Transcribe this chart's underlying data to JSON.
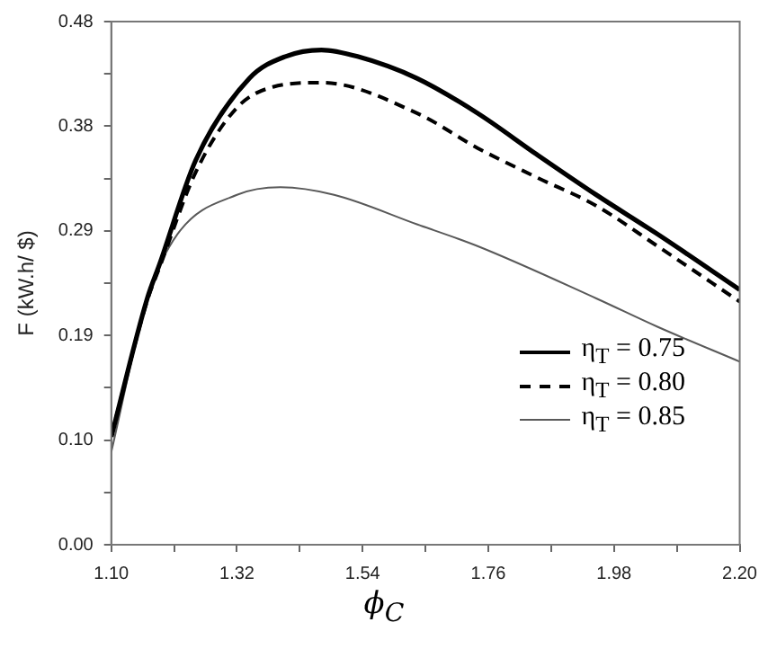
{
  "chart_data": {
    "type": "line",
    "xlabel": "ϕ$_{C}$",
    "ylabel": "F (kW.h/ $)",
    "xlim": [
      1.1,
      2.2
    ],
    "ylim": [
      0,
      0.48
    ],
    "xticks": [
      {
        "value": 1.1,
        "label": "1.10"
      },
      {
        "value": 1.21,
        "label": null
      },
      {
        "value": 1.32,
        "label": "1.32"
      },
      {
        "value": 1.43,
        "label": null
      },
      {
        "value": 1.54,
        "label": "1.54"
      },
      {
        "value": 1.65,
        "label": null
      },
      {
        "value": 1.76,
        "label": "1.76"
      },
      {
        "value": 1.87,
        "label": null
      },
      {
        "value": 1.98,
        "label": "1.98"
      },
      {
        "value": 2.09,
        "label": null
      },
      {
        "value": 2.2,
        "label": "2.20"
      }
    ],
    "yticks": [
      {
        "value": 0,
        "label": "0.00"
      },
      {
        "value": 0.048,
        "label": null
      },
      {
        "value": 0.096,
        "label": "0.10"
      },
      {
        "value": 0.144,
        "label": null
      },
      {
        "value": 0.192,
        "label": "0.19"
      },
      {
        "value": 0.24,
        "label": null
      },
      {
        "value": 0.288,
        "label": "0.29"
      },
      {
        "value": 0.336,
        "label": null
      },
      {
        "value": 0.384,
        "label": "0.38"
      },
      {
        "value": 0.432,
        "label": null
      },
      {
        "value": 0.48,
        "label": "0.48"
      }
    ],
    "grid": false,
    "legend": "bottom right",
    "marker": "none",
    "series": [
      {
        "name": "η$_{T}$ = 0.75",
        "color": "#000000",
        "line_style": "solid",
        "x": [
          1.1,
          1.163,
          1.185,
          1.248,
          1.342,
          1.405,
          1.468,
          1.531,
          1.635,
          1.741,
          1.845,
          1.949,
          2.056,
          2.2
        ],
        "values": [
          0.099,
          0.226,
          0.258,
          0.353,
          0.428,
          0.448,
          0.454,
          0.448,
          0.428,
          0.396,
          0.358,
          0.321,
          0.285,
          0.234
        ]
      },
      {
        "name": "η$_{T}$ = 0.80",
        "color": "#000000",
        "line_style": "dashed",
        "x": [
          1.1,
          1.163,
          1.185,
          1.248,
          1.32,
          1.383,
          1.468,
          1.635,
          1.741,
          1.845,
          1.949,
          2.056,
          2.2
        ],
        "values": [
          0.1,
          0.224,
          0.255,
          0.342,
          0.401,
          0.42,
          0.424,
          0.396,
          0.364,
          0.337,
          0.311,
          0.274,
          0.223
        ]
      },
      {
        "name": "η$_{T}$ = 0.85",
        "color": "#595959",
        "line_style": "solid",
        "x": [
          1.1,
          1.163,
          1.216,
          1.32,
          1.396,
          1.49,
          1.635,
          1.741,
          1.949,
          2.056,
          2.2
        ],
        "values": [
          0.085,
          0.226,
          0.285,
          0.321,
          0.328,
          0.321,
          0.294,
          0.274,
          0.226,
          0.2,
          0.168
        ]
      }
    ]
  }
}
